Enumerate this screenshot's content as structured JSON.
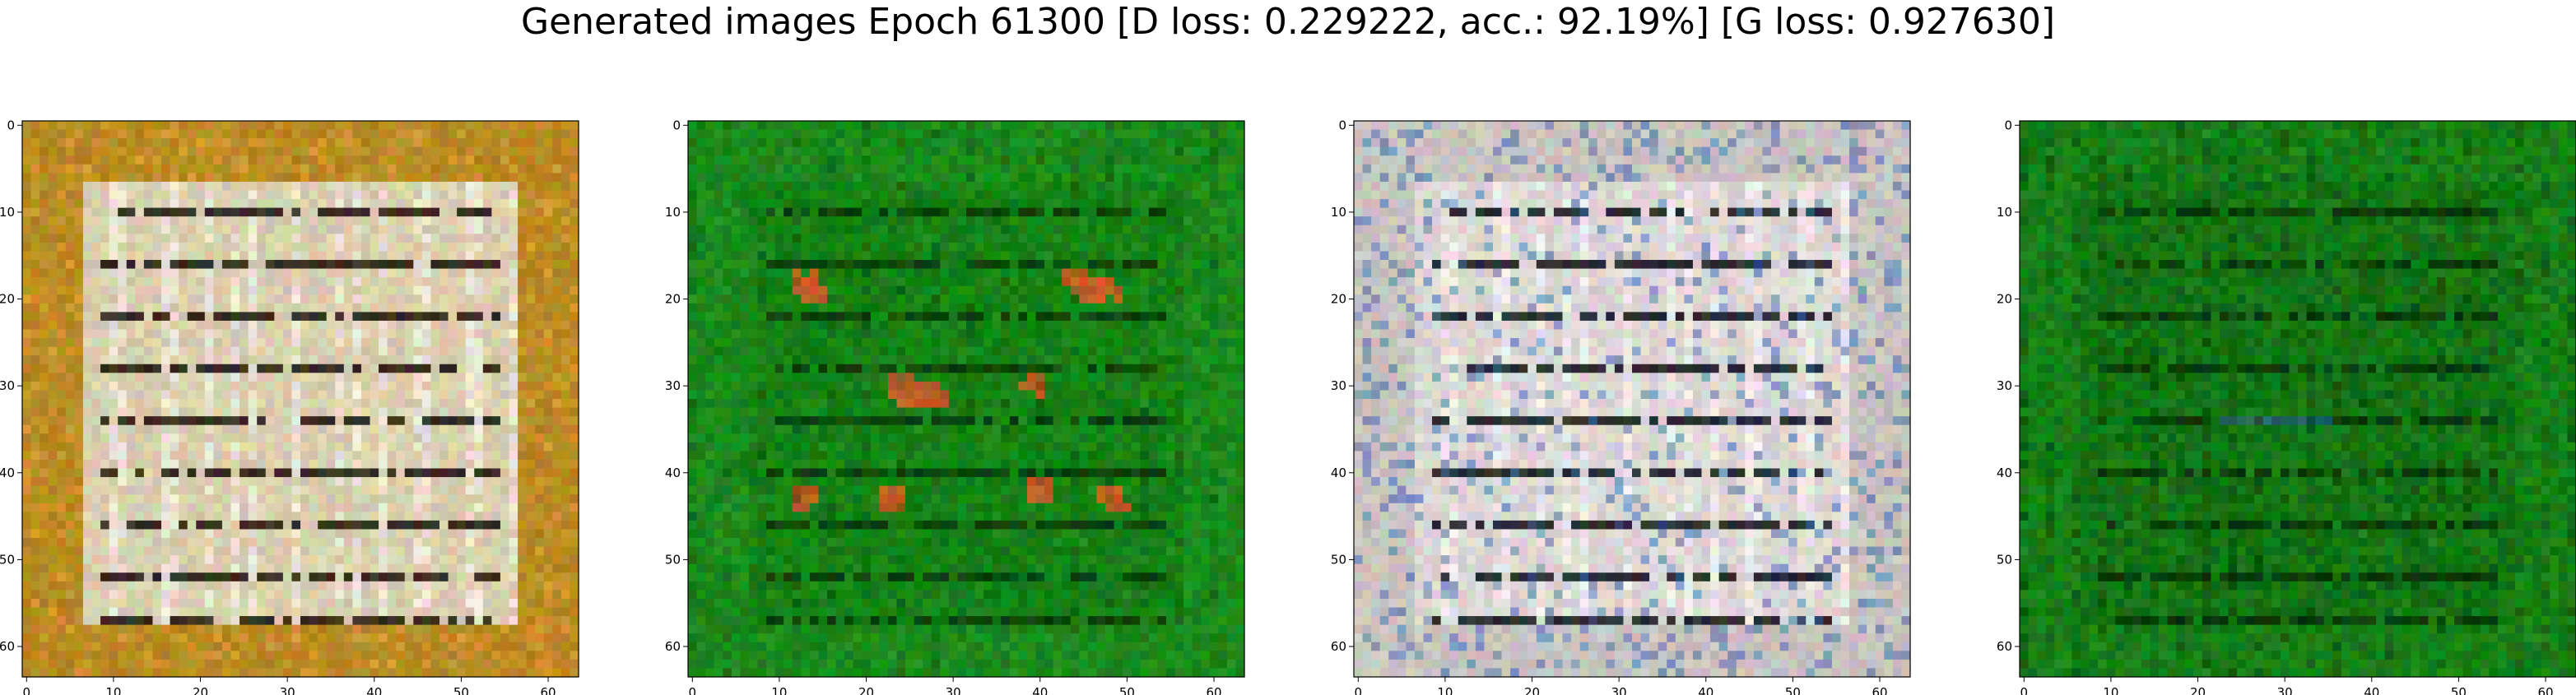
{
  "title": "Generated images Epoch 61300 [D loss: 0.229222, acc.: 92.19%] [G loss: 0.927630]",
  "image_size": 64,
  "x_ticks": [
    "0",
    "10",
    "20",
    "30",
    "40",
    "50",
    "60"
  ],
  "y_ticks": [
    "0",
    "10",
    "20",
    "30",
    "40",
    "50",
    "60"
  ],
  "panels": [
    {
      "name": "generated-image-1",
      "style": "gold",
      "colors": {
        "base": "#b88a22",
        "inner": "#d9cfae",
        "light": "#f4eee6",
        "dark": "#1a1208",
        "accent": "#e8a040"
      }
    },
    {
      "name": "generated-image-2",
      "style": "green-red",
      "colors": {
        "base": "#1c8a1c",
        "inner": "#168216",
        "light": "#2aa02a",
        "dark": "#0a3a0a",
        "accent": "#e2572a"
      }
    },
    {
      "name": "generated-image-3",
      "style": "grey",
      "colors": {
        "base": "#c9c4c0",
        "inner": "#dcd6d4",
        "light": "#f4f0f0",
        "dark": "#0c1018",
        "accent": "#3a6ab0"
      }
    },
    {
      "name": "generated-image-4",
      "style": "green-dark",
      "colors": {
        "base": "#177f17",
        "inner": "#147514",
        "light": "#229222",
        "dark": "#073307",
        "accent": "#2f6fa0"
      }
    }
  ]
}
